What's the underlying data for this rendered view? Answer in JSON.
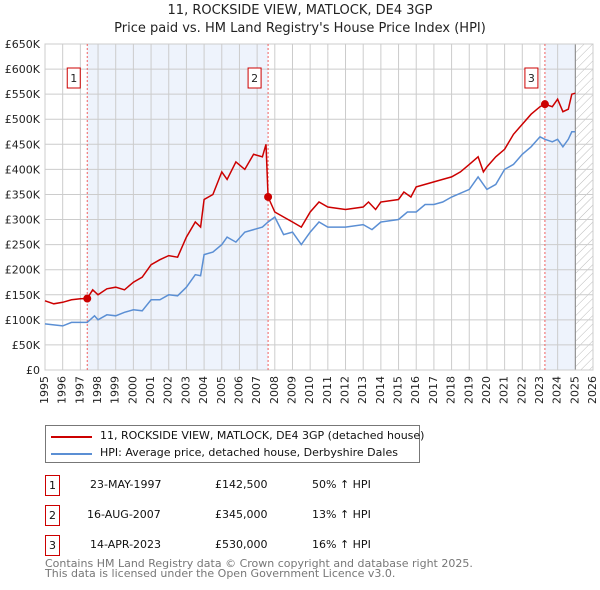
{
  "chart_data": {
    "type": "line",
    "title": "11, ROCKSIDE VIEW, MATLOCK, DE4 3GP",
    "subtitle": "Price paid vs. HM Land Registry's House Price Index (HPI)",
    "xlim": [
      1995,
      2026
    ],
    "ylim": [
      0,
      650000
    ],
    "y_ticks": [
      {
        "v": 0,
        "label": "£0"
      },
      {
        "v": 50000,
        "label": "£50K"
      },
      {
        "v": 100000,
        "label": "£100K"
      },
      {
        "v": 150000,
        "label": "£150K"
      },
      {
        "v": 200000,
        "label": "£200K"
      },
      {
        "v": 250000,
        "label": "£250K"
      },
      {
        "v": 300000,
        "label": "£300K"
      },
      {
        "v": 350000,
        "label": "£350K"
      },
      {
        "v": 400000,
        "label": "£400K"
      },
      {
        "v": 450000,
        "label": "£450K"
      },
      {
        "v": 500000,
        "label": "£500K"
      },
      {
        "v": 550000,
        "label": "£550K"
      },
      {
        "v": 600000,
        "label": "£600K"
      },
      {
        "v": 650000,
        "label": "£650K"
      }
    ],
    "x_ticks": [
      "1995",
      "1996",
      "1997",
      "1998",
      "1999",
      "2000",
      "2001",
      "2002",
      "2003",
      "2004",
      "2005",
      "2006",
      "2007",
      "2008",
      "2009",
      "2010",
      "2011",
      "2012",
      "2013",
      "2014",
      "2015",
      "2016",
      "2017",
      "2018",
      "2019",
      "2020",
      "2021",
      "2022",
      "2023",
      "2024",
      "2025",
      "2026"
    ],
    "grid": true,
    "forecast_hatch_from": 2025,
    "series": [
      {
        "name": "11, ROCKSIDE VIEW, MATLOCK, DE4 3GP (detached house)",
        "color": "#cc0000",
        "x": [
          1995,
          1995.5,
          1996,
          1996.5,
          1997,
          1997.39,
          1997.7,
          1998,
          1998.5,
          1999,
          1999.5,
          2000,
          2000.5,
          2001,
          2001.5,
          2002,
          2002.5,
          2003,
          2003.5,
          2003.8,
          2004,
          2004.5,
          2005,
          2005.3,
          2005.8,
          2006.3,
          2006.8,
          2007.3,
          2007.5,
          2007.62,
          2008,
          2008.5,
          2009,
          2009.5,
          2010,
          2010.5,
          2011,
          2012,
          2013,
          2013.3,
          2013.7,
          2014,
          2015,
          2015.3,
          2015.7,
          2016,
          2016.5,
          2017,
          2017.5,
          2018,
          2018.5,
          2019,
          2019.5,
          2019.8,
          2020,
          2020.5,
          2021,
          2021.5,
          2022,
          2022.5,
          2023,
          2023.28,
          2023.7,
          2024,
          2024.3,
          2024.6,
          2024.8,
          2025
        ],
        "y": [
          138000,
          132000,
          135000,
          140000,
          142000,
          142500,
          160000,
          150000,
          162000,
          165000,
          160000,
          175000,
          185000,
          210000,
          220000,
          228000,
          225000,
          265000,
          295000,
          285000,
          340000,
          350000,
          395000,
          380000,
          415000,
          400000,
          430000,
          425000,
          450000,
          345000,
          315000,
          305000,
          295000,
          285000,
          315000,
          335000,
          325000,
          320000,
          325000,
          335000,
          320000,
          335000,
          340000,
          355000,
          345000,
          365000,
          370000,
          375000,
          380000,
          385000,
          395000,
          410000,
          425000,
          395000,
          405000,
          425000,
          440000,
          470000,
          490000,
          510000,
          525000,
          530000,
          525000,
          540000,
          515000,
          520000,
          550000,
          552000
        ]
      },
      {
        "name": "HPI: Average price, detached house, Derbyshire Dales",
        "color": "#5b8fd4",
        "x": [
          1995,
          1995.5,
          1996,
          1996.5,
          1997,
          1997.39,
          1997.8,
          1998,
          1998.5,
          1999,
          1999.5,
          2000,
          2000.5,
          2001,
          2001.5,
          2002,
          2002.5,
          2003,
          2003.5,
          2003.8,
          2004,
          2004.5,
          2005,
          2005.3,
          2005.8,
          2006.3,
          2006.8,
          2007.3,
          2007.62,
          2008,
          2008.5,
          2009,
          2009.5,
          2010,
          2010.5,
          2011,
          2012,
          2013,
          2013.5,
          2014,
          2015,
          2015.5,
          2016,
          2016.5,
          2017,
          2017.5,
          2018,
          2019,
          2019.5,
          2020,
          2020.5,
          2021,
          2021.5,
          2022,
          2022.5,
          2023,
          2023.28,
          2023.7,
          2024,
          2024.3,
          2024.6,
          2024.8,
          2025
        ],
        "y": [
          92000,
          90000,
          88000,
          95000,
          95000,
          95000,
          108000,
          100000,
          110000,
          108000,
          115000,
          120000,
          118000,
          140000,
          140000,
          150000,
          148000,
          165000,
          190000,
          188000,
          230000,
          235000,
          250000,
          265000,
          255000,
          275000,
          280000,
          285000,
          295000,
          305000,
          270000,
          275000,
          250000,
          275000,
          295000,
          285000,
          285000,
          290000,
          280000,
          295000,
          300000,
          315000,
          315000,
          330000,
          330000,
          335000,
          345000,
          360000,
          385000,
          360000,
          370000,
          400000,
          410000,
          430000,
          445000,
          465000,
          460000,
          455000,
          460000,
          445000,
          460000,
          475000,
          475000
        ]
      }
    ],
    "sales": [
      {
        "n": "1",
        "x": 1997.39,
        "value": 142500,
        "date": "23-MAY-1997",
        "price": "£142,500",
        "hpi": "50% ↑ HPI"
      },
      {
        "n": "2",
        "x": 2007.62,
        "value": 345000,
        "date": "16-AUG-2007",
        "price": "£345,000",
        "hpi": "13% ↑ HPI"
      },
      {
        "n": "3",
        "x": 2023.28,
        "value": 530000,
        "date": "14-APR-2023",
        "price": "£530,000",
        "hpi": "16% ↑ HPI"
      }
    ],
    "shaded_ranges": [
      [
        1997.39,
        2007.62
      ],
      [
        2023.28,
        2025
      ]
    ]
  },
  "legend": {
    "property": "11, ROCKSIDE VIEW, MATLOCK, DE4 3GP (detached house)",
    "hpi": "HPI: Average price, detached house, Derbyshire Dales"
  },
  "footer": {
    "line1": "Contains HM Land Registry data © Crown copyright and database right 2025.",
    "line2": "This data is licensed under the Open Government Licence v3.0."
  }
}
